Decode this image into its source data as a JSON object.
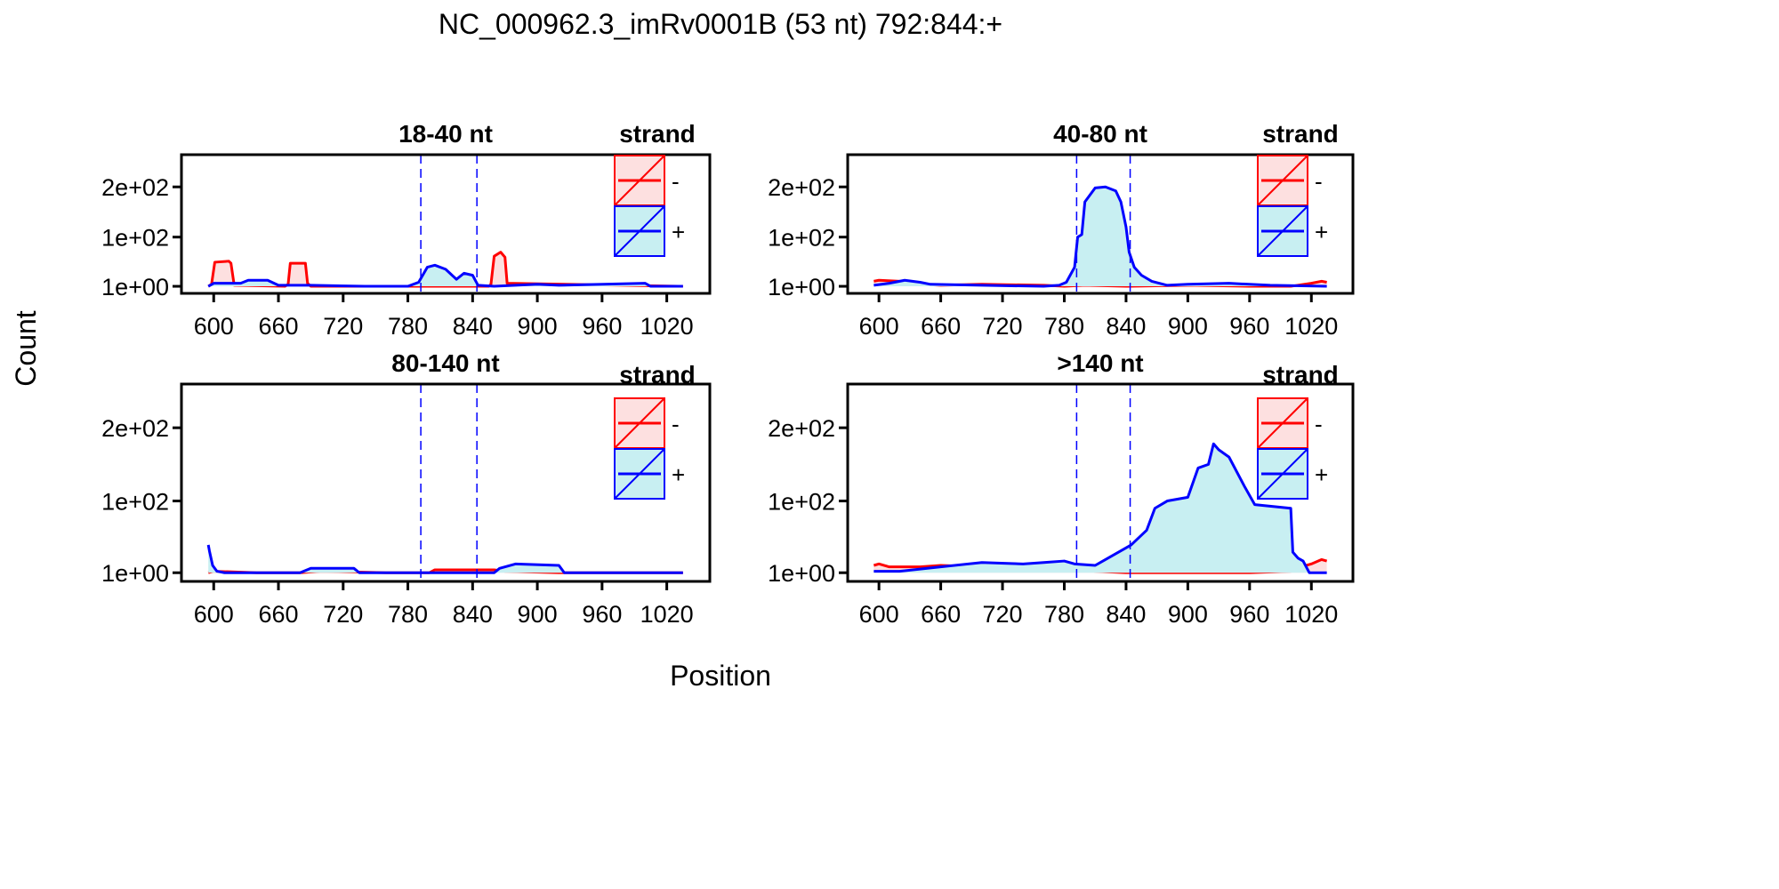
{
  "figure": {
    "title": "NC_000962.3_imRv0001B (53 nt) 792:844:+",
    "xlabel": "Position",
    "ylabel": "Count",
    "legend_title": "strand",
    "legend_minus": "-",
    "legend_plus": "+"
  },
  "colors": {
    "minus_line": "#ff0000",
    "minus_fill": "#fde0e0",
    "plus_line": "#0000ff",
    "plus_fill": "#c8eff2",
    "marker": "#0000ff"
  },
  "chart_data": [
    {
      "type": "area",
      "title": "18-40 nt",
      "x_ticks": [
        "600",
        "660",
        "720",
        "780",
        "840",
        "900",
        "960",
        "1020"
      ],
      "y_ticks": [
        "1e+00",
        "1e+02",
        "2e+02"
      ],
      "xlim": [
        580,
        1050
      ],
      "ylim": [
        -5,
        250
      ],
      "markers": [
        792,
        844
      ],
      "series": [
        {
          "name": "-",
          "x": [
            595,
            598,
            601,
            614,
            616,
            619,
            666,
            669,
            671,
            685,
            687,
            690,
            855,
            857,
            860,
            866,
            870,
            872,
            1035
          ],
          "y": [
            2,
            6,
            50,
            52,
            48,
            4,
            2,
            6,
            48,
            48,
            8,
            2,
            2,
            6,
            62,
            70,
            60,
            8,
            2
          ]
        },
        {
          "name": "+",
          "x": [
            595,
            600,
            625,
            632,
            650,
            660,
            690,
            740,
            780,
            790,
            798,
            805,
            815,
            825,
            832,
            840,
            845,
            860,
            900,
            920,
            1000,
            1005,
            1035
          ],
          "y": [
            2,
            8,
            8,
            14,
            14,
            4,
            4,
            2,
            2,
            10,
            40,
            44,
            36,
            16,
            28,
            24,
            4,
            2,
            6,
            4,
            8,
            2,
            2
          ]
        }
      ]
    },
    {
      "type": "area",
      "title": "40-80 nt",
      "x_ticks": [
        "600",
        "660",
        "720",
        "780",
        "840",
        "900",
        "960",
        "1020"
      ],
      "y_ticks": [
        "1e+00",
        "1e+02",
        "2e+02"
      ],
      "xlim": [
        580,
        1050
      ],
      "ylim": [
        -5,
        250
      ],
      "markers": [
        792,
        844
      ],
      "series": [
        {
          "name": "-",
          "x": [
            595,
            600,
            620,
            640,
            660,
            700,
            760,
            780,
            800,
            840,
            900,
            960,
            1000,
            1020,
            1030,
            1035
          ],
          "y": [
            12,
            14,
            12,
            6,
            4,
            6,
            4,
            2,
            4,
            2,
            4,
            2,
            2,
            8,
            12,
            10
          ]
        },
        {
          "name": "+",
          "x": [
            595,
            610,
            625,
            640,
            650,
            700,
            760,
            775,
            782,
            790,
            793,
            797,
            800,
            810,
            820,
            830,
            835,
            840,
            843,
            848,
            855,
            865,
            880,
            900,
            940,
            980,
            1035
          ],
          "y": [
            4,
            8,
            14,
            10,
            6,
            4,
            2,
            4,
            10,
            40,
            100,
            105,
            170,
            198,
            200,
            192,
            170,
            120,
            70,
            40,
            24,
            12,
            4,
            6,
            8,
            4,
            2
          ]
        }
      ]
    },
    {
      "type": "area",
      "title": "80-140 nt",
      "x_ticks": [
        "600",
        "660",
        "720",
        "780",
        "840",
        "900",
        "960",
        "1020"
      ],
      "y_ticks": [
        "1e+00",
        "1e+02",
        "2e+02"
      ],
      "xlim": [
        580,
        1050
      ],
      "ylim": [
        -5,
        250
      ],
      "markers": [
        792,
        844
      ],
      "series": [
        {
          "name": "-",
          "x": [
            595,
            600,
            640,
            680,
            700,
            760,
            800,
            805,
            860,
            870,
            920,
            1035
          ],
          "y": [
            2,
            4,
            2,
            2,
            4,
            2,
            2,
            6,
            6,
            4,
            2,
            2
          ]
        },
        {
          "name": "+",
          "x": [
            595,
            596,
            599,
            603,
            610,
            680,
            690,
            730,
            735,
            860,
            865,
            880,
            920,
            925,
            1035
          ],
          "y": [
            40,
            32,
            12,
            4,
            2,
            2,
            8,
            8,
            2,
            2,
            8,
            14,
            12,
            2,
            2
          ]
        }
      ]
    },
    {
      "type": "area",
      "title": ">140 nt",
      "x_ticks": [
        "600",
        "660",
        "720",
        "780",
        "840",
        "900",
        "960",
        "1020"
      ],
      "y_ticks": [
        "1e+00",
        "1e+02",
        "2e+02"
      ],
      "xlim": [
        580,
        1050
      ],
      "ylim": [
        -5,
        250
      ],
      "markers": [
        792,
        844
      ],
      "series": [
        {
          "name": "-",
          "x": [
            595,
            600,
            610,
            640,
            660,
            700,
            720,
            760,
            790,
            810,
            840,
            900,
            960,
            1000,
            1010,
            1020,
            1030,
            1035
          ],
          "y": [
            12,
            14,
            10,
            10,
            12,
            10,
            12,
            8,
            6,
            4,
            2,
            2,
            2,
            4,
            10,
            14,
            20,
            18
          ]
        },
        {
          "name": "+",
          "x": [
            595,
            620,
            660,
            700,
            740,
            760,
            780,
            790,
            810,
            820,
            835,
            845,
            860,
            868,
            880,
            900,
            910,
            920,
            925,
            930,
            940,
            955,
            965,
            1000,
            1002,
            1007,
            1012,
            1018,
            1035
          ],
          "y": [
            4,
            4,
            10,
            16,
            14,
            16,
            18,
            14,
            12,
            20,
            32,
            40,
            60,
            90,
            100,
            105,
            145,
            150,
            178,
            170,
            160,
            120,
            95,
            90,
            30,
            22,
            18,
            2,
            2
          ]
        }
      ]
    }
  ]
}
